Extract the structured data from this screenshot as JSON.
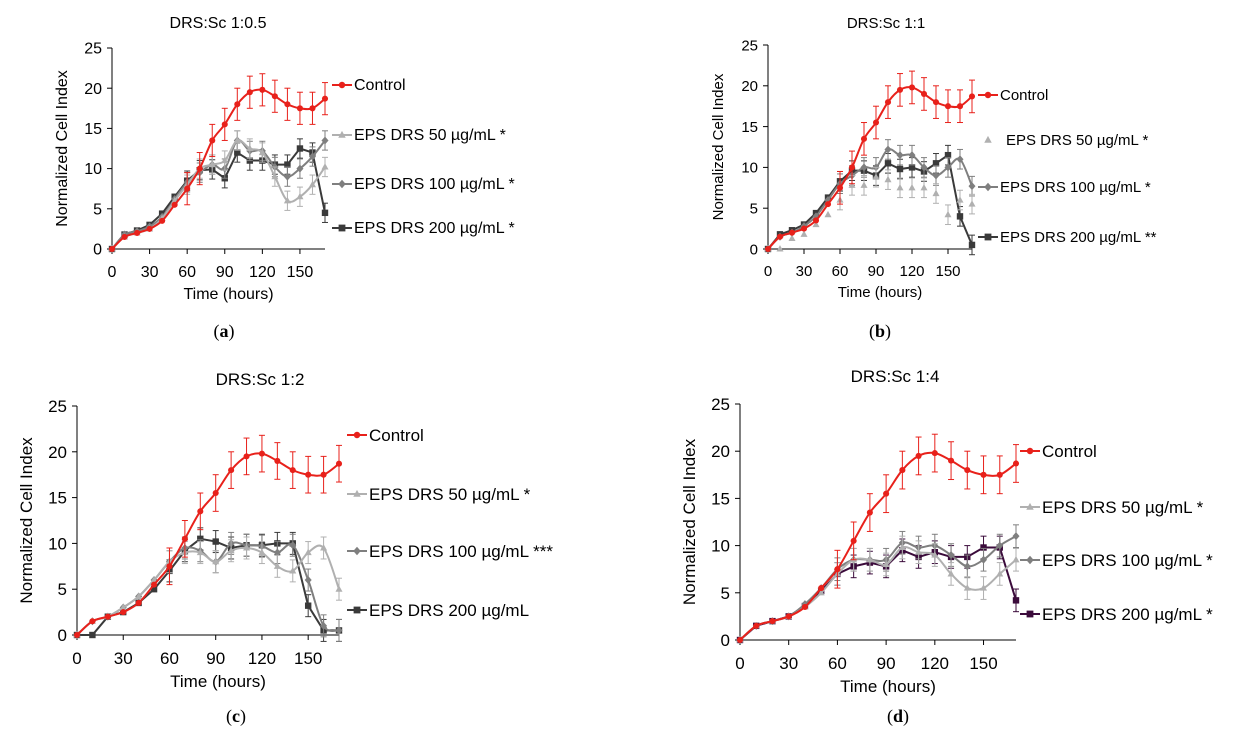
{
  "chart_data": [
    {
      "type": "line",
      "panel_label": "a",
      "title": "DRS:Sc 1:0.5",
      "xlabel": "Time (hours)",
      "ylabel": "Normalized Cell Index",
      "xlim": [
        0,
        170
      ],
      "ylim": [
        0,
        25
      ],
      "xticks": [
        0,
        30,
        60,
        90,
        120,
        150
      ],
      "yticks": [
        0,
        5,
        10,
        15,
        20,
        25
      ],
      "legend_position": "right",
      "x": [
        0,
        10,
        20,
        30,
        40,
        50,
        60,
        70,
        80,
        90,
        100,
        110,
        120,
        130,
        140,
        150,
        160,
        170
      ],
      "series": [
        {
          "name": "Control",
          "color": "#e8211b",
          "marker": "circle",
          "smooth": true,
          "values": [
            0,
            1.5,
            2,
            2.5,
            3.5,
            5.5,
            7.5,
            10,
            13.5,
            15.5,
            18,
            19.5,
            19.8,
            19,
            18,
            17.5,
            17.5,
            18.7
          ]
        },
        {
          "name": "EPS DRS 50 µg/mL *",
          "color": "#b0b0b0",
          "marker": "triangle",
          "smooth": true,
          "values": [
            0,
            1.5,
            2,
            2.5,
            3.8,
            6,
            8,
            10,
            10.5,
            11,
            13.5,
            12.5,
            12,
            9,
            6,
            6.5,
            8,
            10.2
          ]
        },
        {
          "name": "EPS DRS 100 µg/mL *",
          "color": "#7f7f7f",
          "marker": "diamond",
          "smooth": true,
          "values": [
            0,
            1.8,
            2.2,
            2.8,
            4,
            6.2,
            8.3,
            9.5,
            10.5,
            10,
            13.5,
            12.2,
            12.2,
            10.2,
            9,
            10,
            11.5,
            13.5
          ]
        },
        {
          "name": "EPS DRS 200 µg/mL *",
          "color": "#3a3a3a",
          "marker": "square",
          "smooth": false,
          "values": [
            0,
            1.8,
            2.3,
            3,
            4.4,
            6.5,
            8.5,
            9.8,
            9.9,
            8.8,
            12,
            11,
            11,
            10.5,
            10.5,
            12.5,
            12,
            4.5
          ]
        }
      ]
    },
    {
      "type": "line",
      "panel_label": "b",
      "title": "DRS:Sc 1:1",
      "xlabel": "Time (hours)",
      "ylabel": "Normalized Cell Index",
      "xlim": [
        0,
        170
      ],
      "ylim": [
        0,
        25
      ],
      "xticks": [
        0,
        30,
        60,
        90,
        120,
        150
      ],
      "yticks": [
        0,
        5,
        10,
        15,
        20,
        25
      ],
      "legend_position": "right",
      "x": [
        0,
        10,
        20,
        30,
        40,
        50,
        60,
        70,
        80,
        90,
        100,
        110,
        120,
        130,
        140,
        150,
        160,
        170
      ],
      "series": [
        {
          "name": "Control",
          "color": "#e8211b",
          "marker": "circle",
          "smooth": true,
          "values": [
            0,
            1.5,
            2,
            2.5,
            3.5,
            5.5,
            7.5,
            10,
            13.5,
            15.5,
            18,
            19.5,
            19.8,
            19,
            18,
            17.5,
            17.5,
            18.7
          ]
        },
        {
          "name": "EPS DRS 50 µg/mL *",
          "color": "#b0b0b0",
          "marker": "triangle",
          "smooth": false,
          "markers_only": true,
          "values": [
            0,
            0,
            1.3,
            1.8,
            3,
            4.2,
            6,
            7.8,
            7.8,
            8.8,
            8.5,
            7.5,
            7.5,
            7.5,
            6.8,
            4.2,
            6,
            5.5
          ]
        },
        {
          "name": "EPS DRS 100 µg/mL *",
          "color": "#7f7f7f",
          "marker": "diamond",
          "smooth": true,
          "values": [
            0,
            1.5,
            2,
            2.8,
            4,
            6,
            8,
            9,
            10,
            10,
            12.2,
            11.5,
            11.5,
            10,
            9,
            10,
            11,
            7.7
          ]
        },
        {
          "name": "EPS DRS 200 µg/mL **",
          "color": "#3a3a3a",
          "marker": "square",
          "smooth": false,
          "values": [
            0,
            1.8,
            2.3,
            3,
            4.4,
            6.3,
            8.3,
            9.6,
            9.6,
            9,
            10.5,
            9.8,
            10,
            9.5,
            10.5,
            11.5,
            4,
            0.5
          ]
        }
      ]
    },
    {
      "type": "line",
      "panel_label": "c",
      "title": "DRS:Sc 1:2",
      "xlabel": "Time (hours)",
      "ylabel": "Normalized Cell Index",
      "xlim": [
        0,
        170
      ],
      "ylim": [
        0,
        25
      ],
      "xticks": [
        0,
        30,
        60,
        90,
        120,
        150
      ],
      "yticks": [
        0,
        5,
        10,
        15,
        20,
        25
      ],
      "legend_position": "right",
      "x": [
        0,
        10,
        20,
        30,
        40,
        50,
        60,
        70,
        80,
        90,
        100,
        110,
        120,
        130,
        140,
        150,
        160,
        170
      ],
      "series": [
        {
          "name": "Control",
          "color": "#e8211b",
          "marker": "circle",
          "smooth": true,
          "values": [
            0,
            1.5,
            2,
            2.5,
            3.5,
            5.5,
            7.5,
            10.5,
            13.5,
            15.5,
            18,
            19.5,
            19.8,
            19,
            18,
            17.5,
            17.5,
            18.7
          ]
        },
        {
          "name": "EPS DRS 50 µg/mL *",
          "color": "#b0b0b0",
          "marker": "triangle",
          "smooth": true,
          "values": [
            0,
            1.5,
            2,
            3,
            4.2,
            6,
            8,
            9,
            9,
            8,
            9.2,
            9.5,
            9,
            7.5,
            7,
            9,
            9.5,
            5
          ]
        },
        {
          "name": "EPS DRS 100 µg/mL ***",
          "color": "#7f7f7f",
          "marker": "diamond",
          "smooth": true,
          "values": [
            0,
            1.5,
            2,
            3,
            4.2,
            6,
            8,
            9.5,
            9.2,
            8,
            10,
            9.8,
            9.7,
            9,
            9.8,
            6,
            1,
            0.5
          ]
        },
        {
          "name": "EPS DRS 200 µg/mL",
          "color": "#3a3a3a",
          "marker": "square",
          "smooth": false,
          "values": [
            0,
            0,
            2,
            2.5,
            3.5,
            5,
            7,
            9.2,
            10.5,
            10.2,
            9.5,
            9.8,
            9.8,
            10,
            10,
            3.2,
            0.5,
            0.5
          ]
        }
      ]
    },
    {
      "type": "line",
      "panel_label": "d",
      "title": "DRS:Sc 1:4",
      "xlabel": "Time (hours)",
      "ylabel": "Normalized Cell Index",
      "xlim": [
        0,
        170
      ],
      "ylim": [
        0,
        25
      ],
      "xticks": [
        0,
        30,
        60,
        90,
        120,
        150
      ],
      "yticks": [
        0,
        5,
        10,
        15,
        20,
        25
      ],
      "legend_position": "right",
      "x": [
        0,
        10,
        20,
        30,
        40,
        50,
        60,
        70,
        80,
        90,
        100,
        110,
        120,
        130,
        140,
        150,
        160,
        170
      ],
      "series": [
        {
          "name": "Control",
          "color": "#e8211b",
          "marker": "circle",
          "smooth": true,
          "values": [
            0,
            1.5,
            2,
            2.5,
            3.5,
            5.5,
            7.5,
            10.5,
            13.5,
            15.5,
            18,
            19.5,
            19.8,
            19,
            18,
            17.5,
            17.5,
            18.7
          ]
        },
        {
          "name": "EPS DRS 50 µg/mL *",
          "color": "#b0b0b0",
          "marker": "triangle",
          "smooth": true,
          "values": [
            0,
            1.5,
            2,
            2.5,
            3.5,
            5,
            7,
            8.5,
            8.5,
            8,
            9.8,
            9.3,
            9,
            7,
            5.5,
            5.5,
            7,
            8.5
          ]
        },
        {
          "name": "EPS DRS 100 µg/mL *",
          "color": "#7f7f7f",
          "marker": "diamond",
          "smooth": true,
          "values": [
            0,
            1.5,
            2,
            2.5,
            3.8,
            5.5,
            7.5,
            8.5,
            8.5,
            8.5,
            10.3,
            9.8,
            10,
            9,
            7.8,
            8.5,
            10,
            11
          ]
        },
        {
          "name": "EPS DRS 200 µg/mL *",
          "color": "#3b0b3b",
          "marker": "square",
          "smooth": false,
          "values": [
            0,
            1.5,
            2,
            2.5,
            3.6,
            5.2,
            7,
            7.8,
            8.2,
            7.8,
            9.5,
            8.8,
            9.3,
            8.8,
            8.8,
            9.8,
            9.8,
            4.2
          ]
        }
      ]
    }
  ]
}
